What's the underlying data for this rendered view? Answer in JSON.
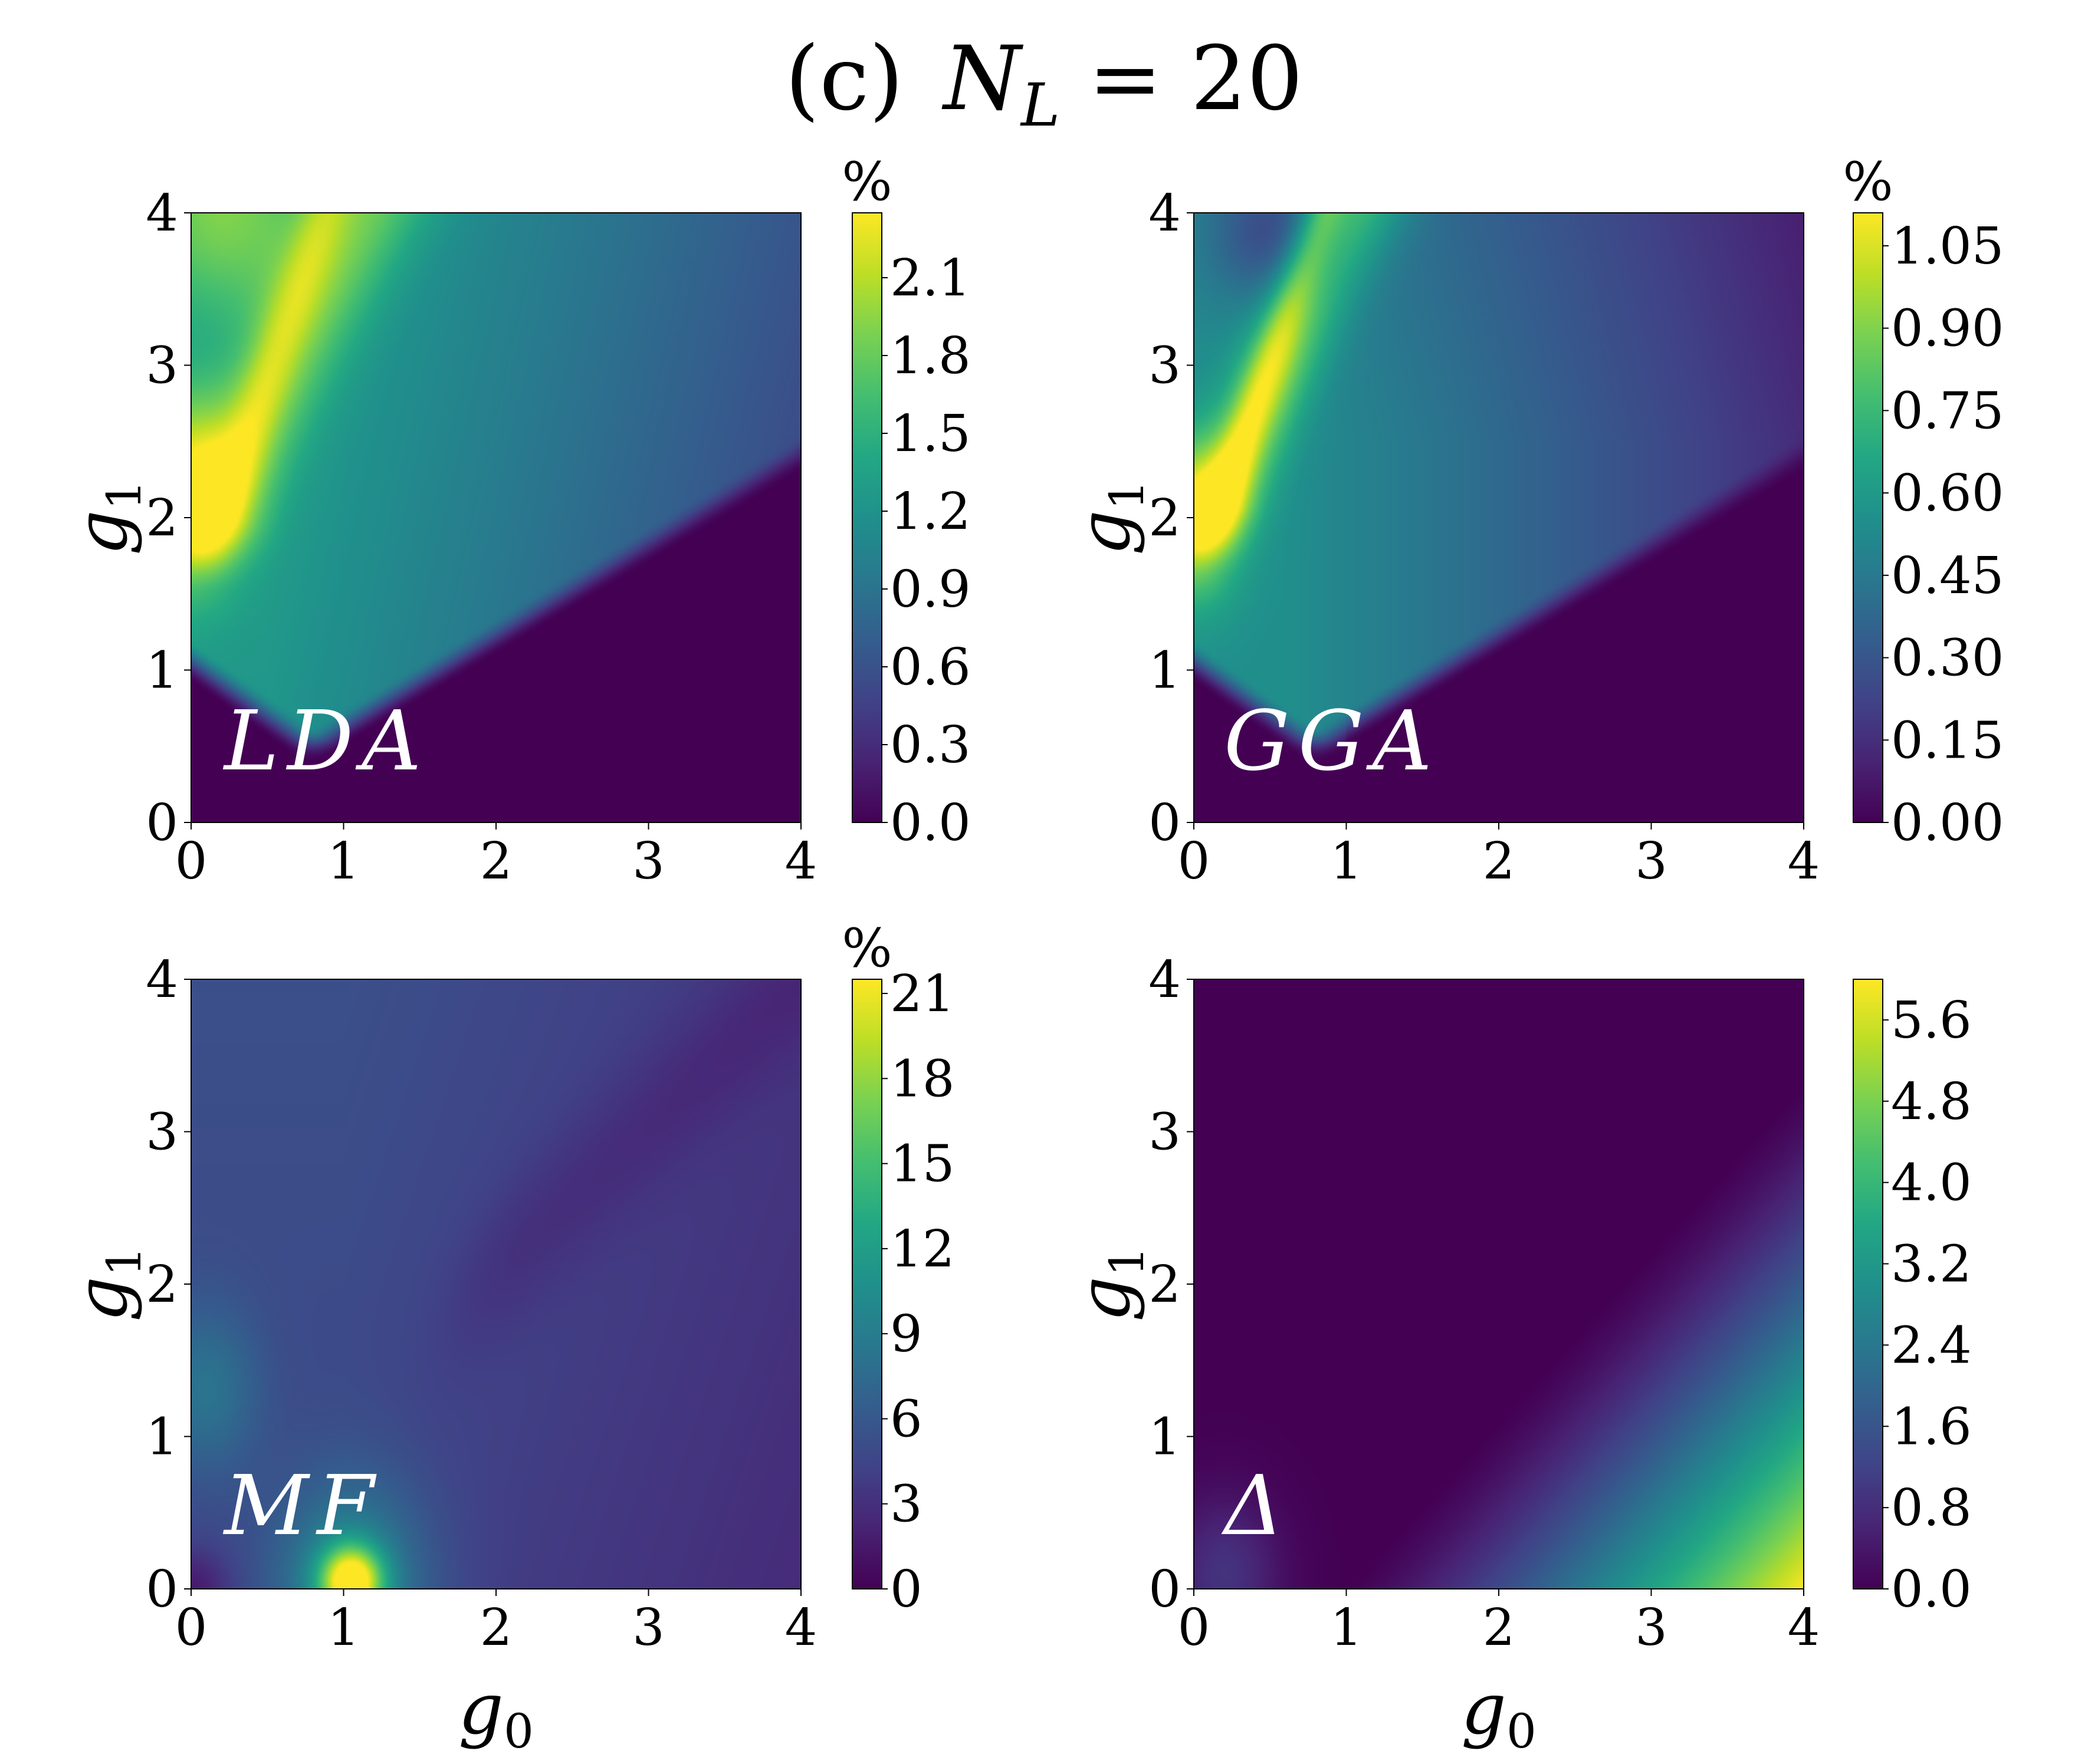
{
  "title": {
    "prefix": "(c)",
    "var": "N",
    "sub": "L",
    "rest": " = 20"
  },
  "chart_data": [
    {
      "type": "heatmap",
      "label": "LDA",
      "xlabel": "",
      "ylabel": "g1",
      "xlim": [
        0,
        4
      ],
      "ylim": [
        0,
        4
      ],
      "xticks": [
        "0",
        "1",
        "2",
        "3",
        "4"
      ],
      "yticks": [
        "0",
        "1",
        "2",
        "3",
        "4"
      ],
      "colorbar": {
        "unit": "%",
        "range": [
          0,
          2.35
        ],
        "ticks": [
          "0.0",
          "0.3",
          "0.6",
          "0.9",
          "1.2",
          "1.5",
          "1.8",
          "2.1"
        ],
        "tick_values": [
          0,
          0.3,
          0.6,
          0.9,
          1.2,
          1.5,
          1.8,
          2.1
        ]
      },
      "model": "lda"
    },
    {
      "type": "heatmap",
      "label": "GGA",
      "xlabel": "",
      "ylabel": "g1",
      "xlim": [
        0,
        4
      ],
      "ylim": [
        0,
        4
      ],
      "xticks": [
        "0",
        "1",
        "2",
        "3",
        "4"
      ],
      "yticks": [
        "0",
        "1",
        "2",
        "3",
        "4"
      ],
      "colorbar": {
        "unit": "%",
        "range": [
          0,
          1.11
        ],
        "ticks": [
          "0.00",
          "0.15",
          "0.30",
          "0.45",
          "0.60",
          "0.75",
          "0.90",
          "1.05"
        ],
        "tick_values": [
          0,
          0.15,
          0.3,
          0.45,
          0.6,
          0.75,
          0.9,
          1.05
        ]
      },
      "model": "gga"
    },
    {
      "type": "heatmap",
      "label": "MF",
      "xlabel": "g0",
      "ylabel": "g1",
      "xlim": [
        0,
        4
      ],
      "ylim": [
        0,
        4
      ],
      "xticks": [
        "0",
        "1",
        "2",
        "3",
        "4"
      ],
      "yticks": [
        "0",
        "1",
        "2",
        "3",
        "4"
      ],
      "colorbar": {
        "unit": "%",
        "range": [
          0,
          21.5
        ],
        "ticks": [
          "0",
          "3",
          "6",
          "9",
          "12",
          "15",
          "18",
          "21"
        ],
        "tick_values": [
          0,
          3,
          6,
          9,
          12,
          15,
          18,
          21
        ]
      },
      "model": "mf"
    },
    {
      "type": "heatmap",
      "label": "Δ",
      "xlabel": "g0",
      "ylabel": "g1",
      "xlim": [
        0,
        4
      ],
      "ylim": [
        0,
        4
      ],
      "xticks": [
        "0",
        "1",
        "2",
        "3",
        "4"
      ],
      "yticks": [
        "0",
        "1",
        "2",
        "3",
        "4"
      ],
      "colorbar": {
        "unit": "",
        "range": [
          0,
          6.0
        ],
        "ticks": [
          "0.0",
          "0.8",
          "1.6",
          "2.4",
          "3.2",
          "4.0",
          "4.8",
          "5.6"
        ],
        "tick_values": [
          0,
          0.8,
          1.6,
          2.4,
          3.2,
          4.0,
          4.8,
          5.6
        ]
      },
      "model": "delta"
    }
  ]
}
